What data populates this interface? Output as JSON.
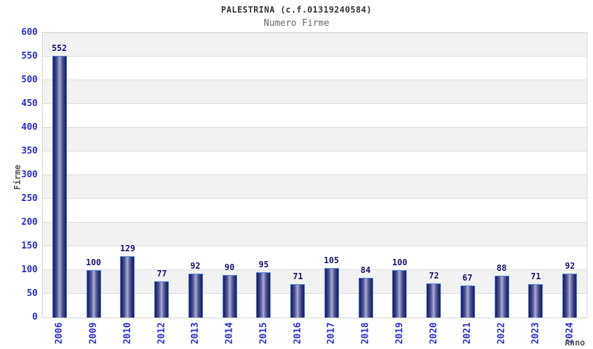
{
  "chart_data": {
    "type": "bar",
    "title": "PALESTRINA (c.f.01319240584)",
    "subtitle": "Numero Firme",
    "xlabel": "Anno",
    "ylabel": "Firme",
    "categories": [
      "2006",
      "2009",
      "2010",
      "2012",
      "2013",
      "2014",
      "2015",
      "2016",
      "2017",
      "2018",
      "2019",
      "2020",
      "2021",
      "2022",
      "2023",
      "2024"
    ],
    "values": [
      552,
      100,
      129,
      77,
      92,
      90,
      95,
      71,
      105,
      84,
      100,
      72,
      67,
      88,
      71,
      92
    ],
    "ylim": [
      0,
      600
    ],
    "yticks": [
      0,
      50,
      100,
      150,
      200,
      250,
      300,
      350,
      400,
      450,
      500,
      550,
      600
    ],
    "grid": true,
    "legend": false,
    "band_fill_alternating": true,
    "colors": {
      "bar_dark": "#1e1f66",
      "bar_light": "#abb1d8",
      "bar_border": "#4e87e0",
      "tick_label": "#2a2ad0",
      "value_label": "#16166b",
      "band_gray": "#f2f2f2",
      "band_white": "#ffffff",
      "gridline": "#dcdcdc",
      "plot_border": "#d4d4d4",
      "title": "#333333",
      "subtitle": "#666666",
      "axis_title": "#555555"
    }
  }
}
